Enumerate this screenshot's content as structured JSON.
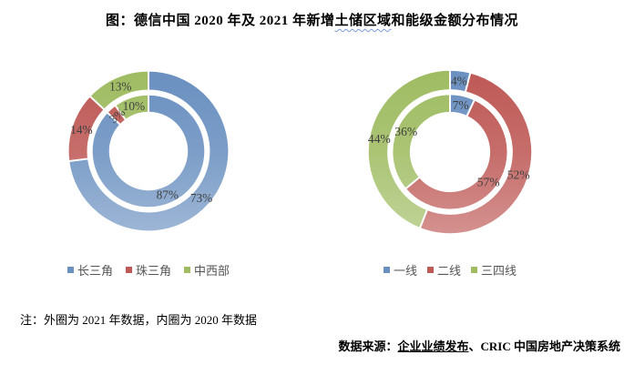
{
  "title": {
    "pre": "图：德信中国 2020 年及 2021 年新增",
    "wavy": "土储区域",
    "post": "和能级金额分布情况"
  },
  "note": "注：外圈为 2021 年数据，内圈为 2020 年数据",
  "source": {
    "prefix": "数据来源：",
    "underlined": "企业业绩发布",
    "suffix": "、CRIC 中国房地产决策系统"
  },
  "colors": {
    "label": "#404040",
    "slice_border": "#ffffff",
    "blue": "#6A90C0",
    "red": "#BE5956",
    "green": "#9FBC62"
  },
  "chart_data": [
    {
      "type": "pie",
      "subtype": "double-donut",
      "categories": [
        "长三角",
        "珠三角",
        "中西部"
      ],
      "colors": [
        "#6A90C0",
        "#BE5956",
        "#9FBC62"
      ],
      "series": [
        {
          "name": "外圈：2021年",
          "values": [
            73,
            14,
            13
          ]
        },
        {
          "name": "内圈：2020年",
          "values": [
            87,
            3,
            10
          ],
          "label_rotations": [
            0,
            -40,
            0
          ]
        }
      ],
      "unit": "%",
      "legend_position": "bottom",
      "labels_shown": true
    },
    {
      "type": "pie",
      "subtype": "double-donut",
      "categories": [
        "一线",
        "二线",
        "三四线"
      ],
      "colors": [
        "#6A90C0",
        "#BE5956",
        "#9FBC62"
      ],
      "series": [
        {
          "name": "外圈：2021年",
          "values": [
            4,
            52,
            44
          ]
        },
        {
          "name": "内圈：2020年",
          "values": [
            7,
            57,
            36
          ]
        }
      ],
      "unit": "%",
      "legend_position": "bottom",
      "labels_shown": true
    }
  ]
}
